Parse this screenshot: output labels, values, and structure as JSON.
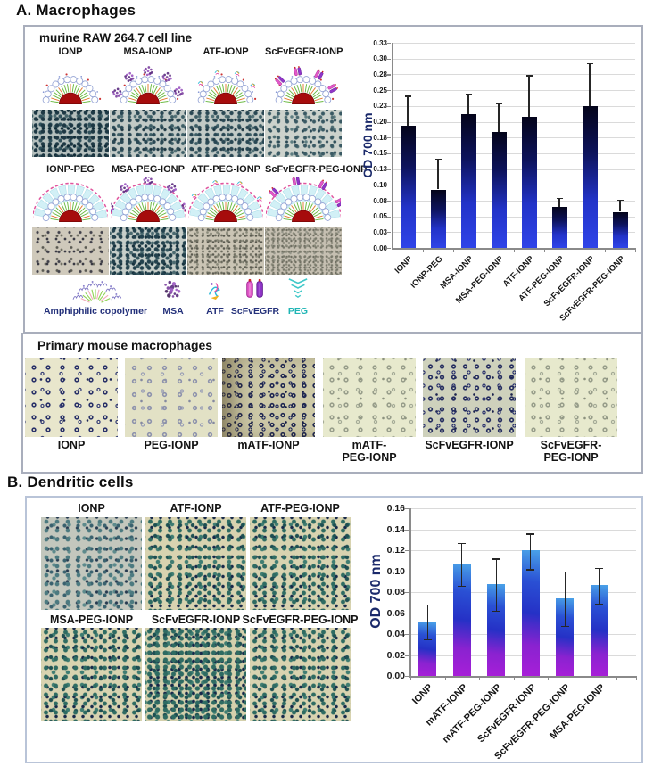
{
  "panel_a": {
    "heading": "A. Macrophages",
    "cell_line_label": "murine RAW 264.7 cell line",
    "row1": [
      {
        "label": "IONP",
        "decor": "none",
        "peg": false,
        "appearance": "slate-dense"
      },
      {
        "label": "MSA-IONP",
        "decor": "msa",
        "peg": false,
        "appearance": "slate-medium"
      },
      {
        "label": "ATF-IONP",
        "decor": "atf",
        "peg": false,
        "appearance": "slate-medium"
      },
      {
        "label": "ScFvEGFR-IONP",
        "decor": "scfv",
        "peg": false,
        "appearance": "slate-light"
      }
    ],
    "row2": [
      {
        "label": "IONP-PEG",
        "decor": "none",
        "peg": true,
        "appearance": "tan-sparse"
      },
      {
        "label": "MSA-PEG-IONP",
        "decor": "msa",
        "peg": true,
        "appearance": "slate-dense2"
      },
      {
        "label": "ATF-PEG-IONP",
        "decor": "atf",
        "peg": true,
        "appearance": "tan-fine"
      },
      {
        "label": "ScFvEGFR-PEG-IONP",
        "decor": "scfv",
        "peg": true,
        "appearance": "tan-veryfine"
      }
    ],
    "legend": [
      {
        "label": "Amphiphilic copolymer",
        "icon": "copolymer-icon",
        "label_color": "#23307a"
      },
      {
        "label": "MSA",
        "icon": "msa-icon",
        "label_color": "#23307a"
      },
      {
        "label": "ATF",
        "icon": "atf-icon",
        "label_color": "#23307a"
      },
      {
        "label": "ScFvEGFR",
        "icon": "scfvegfr-icon",
        "label_color": "#23307a"
      },
      {
        "label": "PEG",
        "icon": "peg-icon",
        "label_color": "#1fb5b5"
      }
    ],
    "primary": {
      "title": "Primary mouse macrophages",
      "items": [
        {
          "label": "IONP",
          "appearance": "rings-medium"
        },
        {
          "label": "PEG-IONP",
          "appearance": "rings-faint"
        },
        {
          "label": "mATF-IONP",
          "appearance": "rings-dense-dark"
        },
        {
          "label": "mATF-\nPEG-IONP",
          "appearance": "rings-faint2"
        },
        {
          "label": "ScFvEGFR-IONP",
          "appearance": "rings-dense"
        },
        {
          "label": "ScFvEGFR-\nPEG-IONP",
          "appearance": "rings-faint2"
        }
      ]
    }
  },
  "panel_b": {
    "heading": "B. Dendritic cells",
    "row1": [
      {
        "label": "IONP",
        "appearance": "b-gray"
      },
      {
        "label": "ATF-IONP",
        "appearance": "b-medium"
      },
      {
        "label": "ATF-PEG-IONP",
        "appearance": "b-medium"
      }
    ],
    "row2": [
      {
        "label": "MSA-PEG-IONP",
        "appearance": "b-medium"
      },
      {
        "label": "ScFvEGFR-IONP",
        "appearance": "b-dense"
      },
      {
        "label": "ScFvEGFR-PEG-IONP",
        "appearance": "b-medium"
      }
    ]
  },
  "chart_data": [
    {
      "type": "bar",
      "title": "",
      "ylabel": "OD 700 nm",
      "xlabel": "",
      "categories": [
        "IONP",
        "IONP-PEG",
        "MSA-IONP",
        "MSA-PEG-IONP",
        "ATF-IONP",
        "ATF-PEG-IONP",
        "ScFvEGFR-IONP",
        "ScFvEGFR-PEG-IONP"
      ],
      "values": [
        0.197,
        0.094,
        0.215,
        0.186,
        0.211,
        0.066,
        0.228,
        0.058
      ],
      "error_top": [
        0.245,
        0.144,
        0.249,
        0.233,
        0.278,
        0.081,
        0.297,
        0.078
      ],
      "ylim": [
        0,
        0.33
      ],
      "ytick_labels": [
        "0.00",
        "0.03",
        "0.05",
        "0.08",
        "0.10",
        "0.13",
        "0.15",
        "0.18",
        "0.20",
        "0.23",
        "0.25",
        "0.28",
        "0.30",
        "0.33"
      ],
      "grid": true,
      "legend_position": "none",
      "bar_gradient": [
        "#04041a",
        "#0d135c",
        "#2233c8",
        "#2f44e8"
      ]
    },
    {
      "type": "bar",
      "title": "",
      "ylabel": "OD 700 nm",
      "xlabel": "",
      "categories": [
        "IONP",
        "mATF-IONP",
        "mATF-PEG-IONP",
        "ScFvEGFR-IONP",
        "ScFvEGFR-PEG-IONP",
        "MSA-PEG-IONP"
      ],
      "values": [
        0.051,
        0.107,
        0.088,
        0.12,
        0.074,
        0.087
      ],
      "error_top": [
        0.068,
        0.127,
        0.112,
        0.136,
        0.1,
        0.103
      ],
      "error_bottom": [
        0.035,
        0.086,
        0.062,
        0.102,
        0.048,
        0.069
      ],
      "ylim": [
        0,
        0.16
      ],
      "ytick_labels": [
        "0.00",
        "0.02",
        "0.04",
        "0.06",
        "0.08",
        "0.10",
        "0.12",
        "0.14",
        "0.16"
      ],
      "grid": true,
      "legend_position": "none",
      "bar_gradient": [
        "#4aa2e8",
        "#2a50d4",
        "#2531c6",
        "#8a22d0",
        "#a81fd8"
      ]
    }
  ],
  "colors": {
    "axis_label": "#1b2a6b",
    "panel_a_border": "#a9aebc",
    "panel_b_border": "#b9c4d8",
    "core_red": "#a60c0c",
    "peg_teal": "#1fb5b5"
  }
}
